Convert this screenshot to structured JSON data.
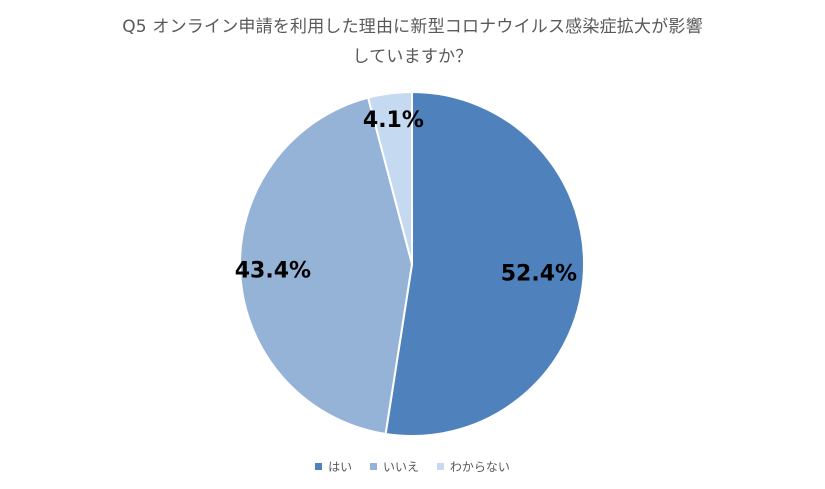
{
  "chart_data": {
    "type": "pie",
    "title": "Q5 オンライン申請を利用した理由に新型コロナウイルス感染症拡大が影響していますか？",
    "title_lines": [
      "Q5 オンライン申請を利用した理由に新型コロナウイルス感染症拡大が影響",
      "していますか？"
    ],
    "categories": [
      "はい",
      "いいえ",
      "わからない"
    ],
    "values": [
      52.4,
      43.4,
      4.1
    ],
    "value_labels": [
      "52.4%",
      "43.4%",
      "4.1%"
    ],
    "colors": [
      "#4f81bd",
      "#95b3d7",
      "#c5d9f1"
    ],
    "start_angle": "12 o'clock",
    "direction": "clockwise",
    "legend_position": "bottom"
  }
}
